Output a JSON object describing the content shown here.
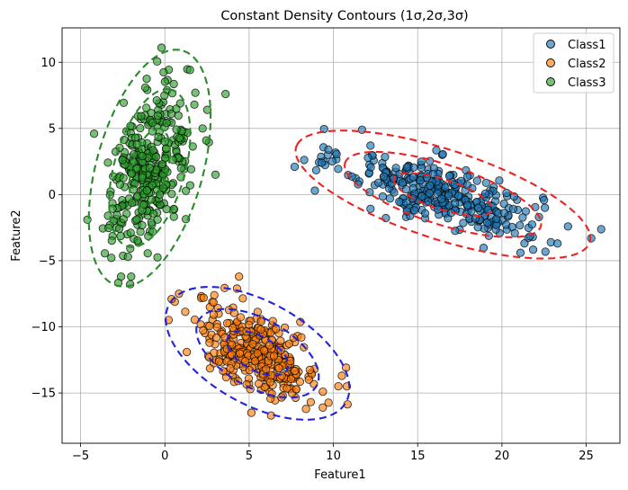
{
  "chart_data": {
    "type": "scatter",
    "title": "Constant Density Contours (1σ,2σ,3σ)",
    "xlabel": "Feature1",
    "ylabel": "Feature2",
    "xlim": [
      -6.1,
      27.0
    ],
    "ylim": [
      -18.8,
      12.6
    ],
    "xticks": [
      -5,
      0,
      5,
      10,
      15,
      20,
      25
    ],
    "yticks": [
      10,
      5,
      0,
      -5,
      -10,
      -15
    ],
    "grid": true,
    "legend_position": "top-right",
    "marker_alpha": 0.65,
    "series": [
      {
        "name": "Class1",
        "color": "#1f77b4",
        "count": 350,
        "center": [
          16.5,
          0.0
        ],
        "cov": [
          [
            8.5,
            -3.2
          ],
          [
            -3.2,
            2.6
          ]
        ],
        "sample_points": [
          [
            7.7,
            2.1
          ],
          [
            9.3,
            2.4
          ],
          [
            9.7,
            3.4
          ],
          [
            11.7,
            4.9
          ],
          [
            12.2,
            3.7
          ],
          [
            23.3,
            -3.7
          ],
          [
            25.3,
            -3.3
          ],
          [
            8.9,
            0.3
          ],
          [
            21.1,
            -4.4
          ],
          [
            15.7,
            0.1
          ],
          [
            18.6,
            -1.0
          ],
          [
            14.1,
            0.9
          ]
        ]
      },
      {
        "name": "Class2",
        "color": "#ff7f0e",
        "count": 350,
        "center": [
          5.5,
          -12.0
        ],
        "cov": [
          [
            3.3,
            -1.6
          ],
          [
            -1.6,
            2.8
          ]
        ],
        "sample_points": [
          [
            0.4,
            -7.9
          ],
          [
            2.3,
            -7.8
          ],
          [
            4.4,
            -6.2
          ],
          [
            10.8,
            -14.5
          ],
          [
            10.5,
            -13.7
          ],
          [
            6.3,
            -16.7
          ],
          [
            1.3,
            -11.9
          ],
          [
            8.1,
            -10.8
          ],
          [
            5.5,
            -12.0
          ],
          [
            6.0,
            -13.2
          ]
        ]
      },
      {
        "name": "Class3",
        "color": "#2ca02c",
        "count": 350,
        "center": [
          -0.9,
          2.0
        ],
        "cov": [
          [
            1.45,
            1.55
          ],
          [
            1.55,
            8.9
          ]
        ],
        "sample_points": [
          [
            -0.2,
            11.1
          ],
          [
            3.6,
            7.6
          ],
          [
            -4.2,
            4.6
          ],
          [
            -2.6,
            -6.2
          ],
          [
            -2.0,
            -6.2
          ],
          [
            1.5,
            0.7
          ],
          [
            -4.6,
            -1.9
          ],
          [
            3.0,
            1.5
          ],
          [
            -0.9,
            2.0
          ],
          [
            0.0,
            4.0
          ]
        ]
      }
    ],
    "contours": [
      {
        "class": "Class1",
        "sigmas": [
          1,
          2,
          3
        ],
        "color": "#ee2222",
        "linestyle": "dashed"
      },
      {
        "class": "Class2",
        "sigmas": [
          1,
          2,
          3
        ],
        "color": "#2222dd",
        "linestyle": "dashed"
      },
      {
        "class": "Class3",
        "sigmas": [
          1,
          2,
          3
        ],
        "color": "#2a8a2a",
        "linestyle": "dashed"
      }
    ]
  }
}
